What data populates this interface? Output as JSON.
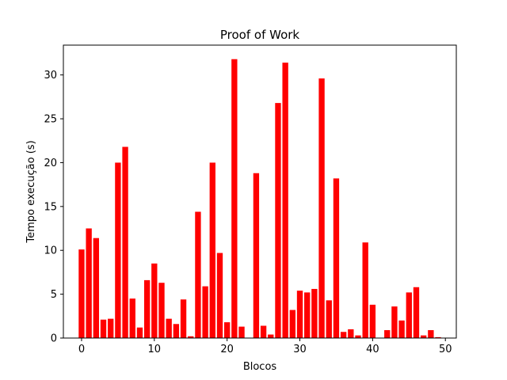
{
  "chart_data": {
    "type": "bar",
    "title": "Proof of Work",
    "xlabel": "Blocos",
    "ylabel": "Tempo execução (s)",
    "xlim": [
      -2.5,
      51.5
    ],
    "ylim": [
      0,
      33.4
    ],
    "xticks": [
      0,
      10,
      20,
      30,
      40,
      50
    ],
    "yticks": [
      0,
      5,
      10,
      15,
      20,
      25,
      30
    ],
    "grid": false,
    "bar_color": "#ff0000",
    "x": [
      0,
      1,
      2,
      3,
      4,
      5,
      6,
      7,
      8,
      9,
      10,
      11,
      12,
      13,
      14,
      15,
      16,
      17,
      18,
      19,
      20,
      21,
      22,
      23,
      24,
      25,
      26,
      27,
      28,
      29,
      30,
      31,
      32,
      33,
      34,
      35,
      36,
      37,
      38,
      39,
      40,
      41,
      42,
      43,
      44,
      45,
      46,
      47,
      48,
      49
    ],
    "values": [
      10.1,
      12.5,
      11.4,
      2.1,
      2.2,
      20.0,
      21.8,
      4.5,
      1.2,
      6.6,
      8.5,
      6.3,
      2.2,
      1.6,
      4.4,
      0.2,
      14.4,
      5.9,
      20.0,
      9.7,
      1.8,
      31.8,
      1.3,
      0.0,
      18.8,
      1.4,
      0.4,
      26.8,
      31.4,
      3.2,
      5.4,
      5.2,
      5.6,
      29.6,
      4.3,
      18.2,
      0.7,
      1.0,
      0.3,
      10.9,
      3.8,
      0.0,
      0.9,
      3.6,
      2.0,
      5.2,
      5.8,
      0.3,
      0.9,
      0.1
    ]
  }
}
